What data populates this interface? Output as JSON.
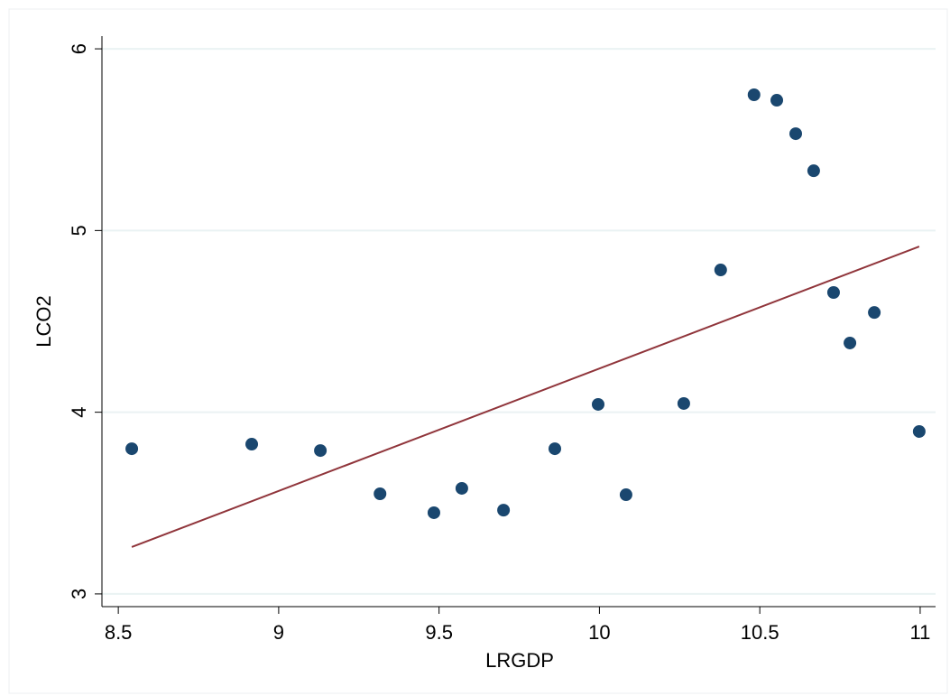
{
  "chart_data": {
    "type": "scatter",
    "x_label": "LRGDP",
    "y_label": "LCO2",
    "x": [
      8.542,
      8.916,
      9.13,
      9.316,
      9.484,
      9.571,
      9.701,
      9.861,
      9.996,
      10.083,
      10.263,
      10.378,
      10.482,
      10.553,
      10.612,
      10.668,
      10.73,
      10.781,
      10.857,
      10.997
    ],
    "values": [
      3.799,
      3.824,
      3.789,
      3.551,
      3.447,
      3.581,
      3.461,
      3.799,
      4.043,
      3.546,
      4.048,
      4.783,
      5.747,
      5.717,
      5.533,
      5.329,
      4.659,
      4.381,
      4.549,
      3.894
    ],
    "color": "#1a476f",
    "fit": {
      "x": [
        8.542,
        10.997
      ],
      "values": [
        3.258,
        4.912
      ],
      "color": "#90353b"
    },
    "xlim": [
      8.449,
      11.048
    ],
    "xticks": [
      8.5,
      9,
      9.5,
      10,
      10.5,
      11
    ],
    "ylim": [
      2.93,
      6.07
    ],
    "yticks": [
      3,
      4,
      5,
      6
    ],
    "grid": true
  }
}
